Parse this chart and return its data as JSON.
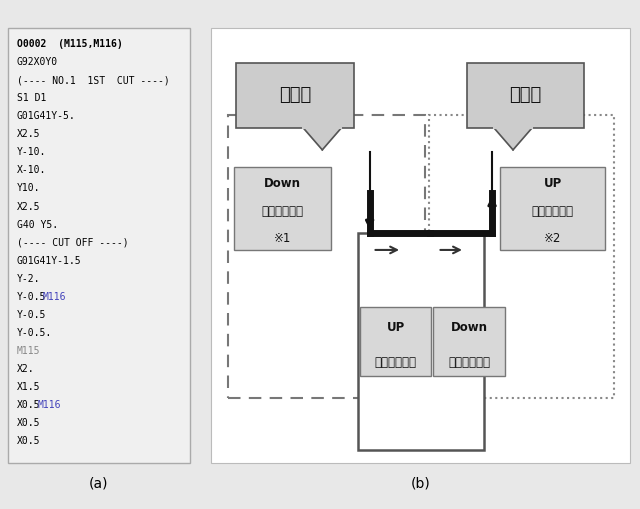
{
  "bg_color": "#e8e8e8",
  "panel_bg": "#f0f0f0",
  "code_lines": [
    {
      "text": "O0002  (M115,M116)",
      "bold": true,
      "color": "#000000"
    },
    {
      "text": "G92X0Y0",
      "bold": false,
      "color": "#000000"
    },
    {
      "text": "(---- NO.1  1ST  CUT ----)",
      "bold": false,
      "color": "#000000"
    },
    {
      "text": "S1 D1",
      "bold": false,
      "color": "#000000"
    },
    {
      "text": "G01G41Y-5.",
      "bold": false,
      "color": "#000000"
    },
    {
      "text": "X2.5",
      "bold": false,
      "color": "#000000"
    },
    {
      "text": "Y-10.",
      "bold": false,
      "color": "#000000"
    },
    {
      "text": "X-10.",
      "bold": false,
      "color": "#000000"
    },
    {
      "text": "Y10.",
      "bold": false,
      "color": "#000000"
    },
    {
      "text": "X2.5",
      "bold": false,
      "color": "#000000"
    },
    {
      "text": "G40 Y5.",
      "bold": false,
      "color": "#000000"
    },
    {
      "text": "(---- CUT OFF ----)",
      "bold": false,
      "color": "#000000"
    },
    {
      "text": "G01G41Y-1.5",
      "bold": false,
      "color": "#000000"
    },
    {
      "text": "Y-2.",
      "bold": false,
      "color": "#000000"
    },
    {
      "text": "Y-0.5",
      "bold": false,
      "color": "#000000",
      "suffix": "M116",
      "suffix_color": "#4444bb"
    },
    {
      "text": "Y-0.5",
      "bold": false,
      "color": "#000000"
    },
    {
      "text": "Y-0.5.",
      "bold": false,
      "color": "#000000"
    },
    {
      "text": "M115",
      "bold": false,
      "color": "#888888"
    },
    {
      "text": "X2.",
      "bold": false,
      "color": "#000000"
    },
    {
      "text": "X1.5",
      "bold": false,
      "color": "#000000"
    },
    {
      "text": "X0.5",
      "bold": false,
      "color": "#000000",
      "suffix": "M116",
      "suffix_color": "#4444bb"
    },
    {
      "text": "X0.5",
      "bold": false,
      "color": "#000000"
    },
    {
      "text": "X0.5",
      "bold": false,
      "color": "#000000"
    }
  ],
  "label_a": "(a)",
  "label_b": "(b)",
  "callout_left_text": "進入部",
  "callout_right_text": "退避部",
  "box_down_left": [
    "Down",
    "パラメータ値",
    "※1"
  ],
  "box_up_right": [
    "UP",
    "パラメータ値",
    "※2"
  ],
  "box_up_bottom": [
    "UP",
    "パラメータ値"
  ],
  "box_down_bottom": [
    "Down",
    "パラメータ値"
  ]
}
